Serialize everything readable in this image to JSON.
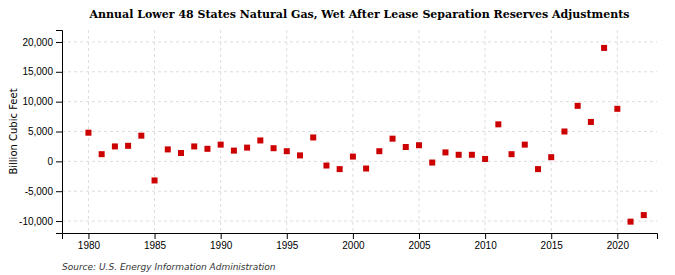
{
  "chart_data": {
    "type": "scatter",
    "title": "Annual Lower 48 States Natural Gas, Wet After Lease Separation Reserves Adjustments",
    "ylabel": "Billion Cubic Feet",
    "source": "Source: U.S. Energy Information Administration",
    "color": "#cc0000",
    "marker": "square",
    "grid": true,
    "x": [
      1980,
      1981,
      1982,
      1983,
      1984,
      1985,
      1986,
      1987,
      1988,
      1989,
      1990,
      1991,
      1992,
      1993,
      1994,
      1995,
      1996,
      1997,
      1998,
      1999,
      2000,
      2001,
      2002,
      2003,
      2004,
      2005,
      2006,
      2007,
      2008,
      2009,
      2010,
      2011,
      2012,
      2013,
      2014,
      2015,
      2016,
      2017,
      2018,
      2019,
      2020,
      2021,
      2022
    ],
    "values": [
      4800,
      1200,
      2500,
      2600,
      4300,
      -3200,
      2000,
      1400,
      2500,
      2100,
      2800,
      1800,
      2300,
      3500,
      2200,
      1700,
      1000,
      4000,
      -700,
      -1300,
      800,
      -1200,
      1700,
      3800,
      2400,
      2700,
      -200,
      1500,
      1100,
      1100,
      400,
      6200,
      1200,
      2800,
      -1300,
      700,
      5000,
      9300,
      6600,
      19000,
      8800,
      -10100,
      -9000
    ],
    "xlim": [
      1978,
      2023
    ],
    "ylim": [
      -12000,
      22000
    ],
    "xticks": [
      1980,
      1985,
      1990,
      1995,
      2000,
      2005,
      2010,
      2015,
      2020
    ],
    "yticks": [
      {
        "value": -10000,
        "label": "-10,000"
      },
      {
        "value": -5000,
        "label": "-5,000"
      },
      0,
      {
        "value": 5000,
        "label": "5,000"
      },
      {
        "value": 10000,
        "label": "10,000"
      },
      {
        "value": 15000,
        "label": "15,000"
      },
      {
        "value": 20000,
        "label": "20,000"
      }
    ]
  }
}
